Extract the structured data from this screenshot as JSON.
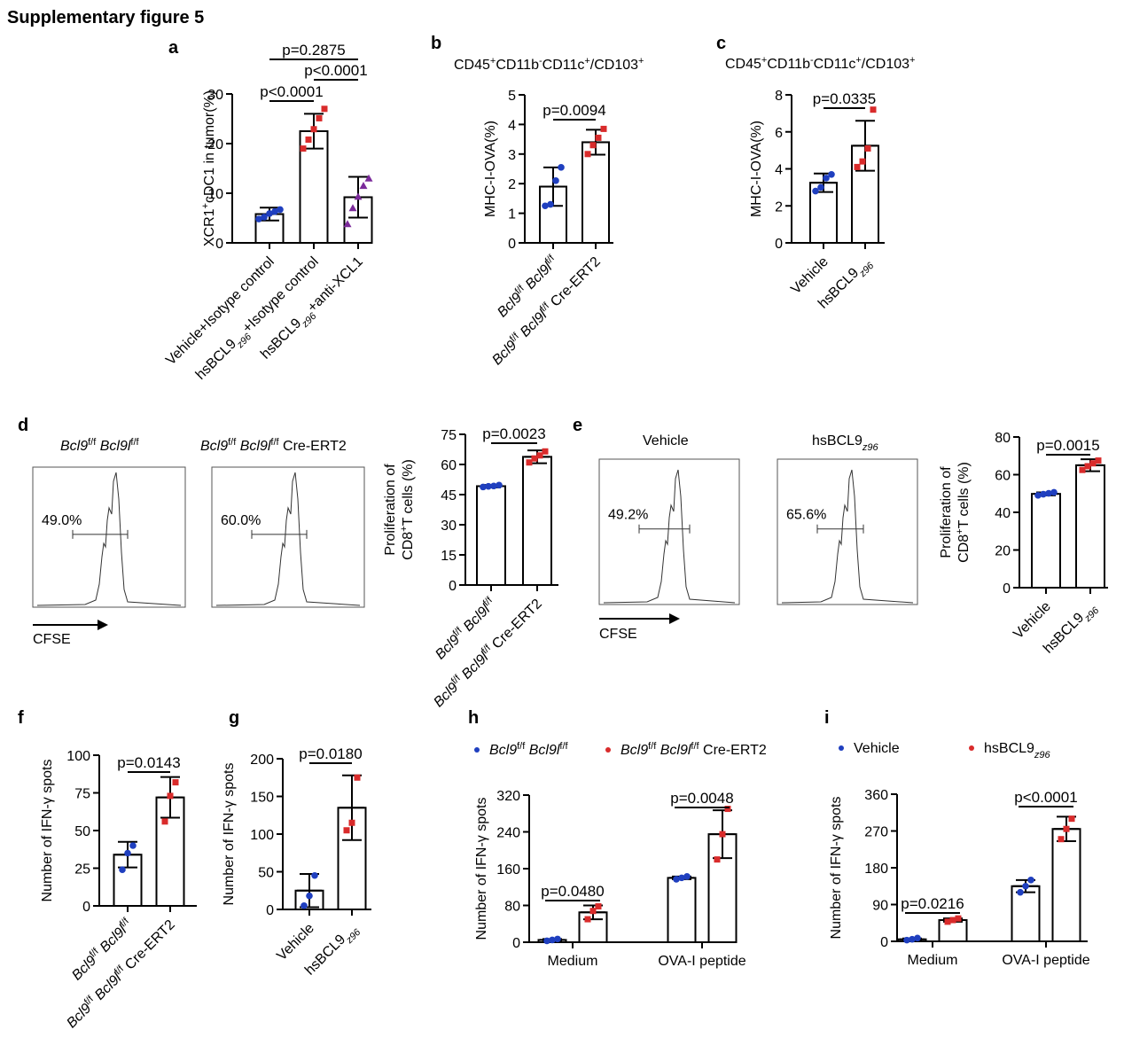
{
  "figure": {
    "title": "Supplementary figure 5"
  },
  "colors": {
    "blue": "#1f3fbf",
    "red": "#d92b2b",
    "purple": "#7b2a9a",
    "axis": "#000000"
  },
  "chart_data": [
    {
      "panel": "a",
      "type": "bar",
      "title": "",
      "ylabel": "XCR1⁺cDC1 in tumor(%)",
      "ylim": [
        0,
        30
      ],
      "yticks": [
        0,
        10,
        20,
        30
      ],
      "categories": [
        "Vehicle+Isotype control",
        "hsBCL9z96+Isotype control",
        "hsBCL9z96+anti-XCL1"
      ],
      "values": [
        5.8,
        22.5,
        9.2
      ],
      "errors": [
        1.3,
        3.5,
        4.1
      ],
      "points": [
        [
          4.8,
          5.2,
          5.9,
          6.3,
          6.7
        ],
        [
          19.0,
          20.8,
          22.9,
          25.1,
          27.0
        ],
        [
          3.8,
          7.0,
          9.3,
          11.5,
          13.0
        ]
      ],
      "point_colors": [
        "blue",
        "red",
        "purple"
      ],
      "comparisons": [
        {
          "from": 0,
          "to": 1,
          "text": "p<0.0001"
        },
        {
          "from": 1,
          "to": 2,
          "text": "p<0.0001"
        },
        {
          "from": 0,
          "to": 2,
          "text": "p=0.2875"
        }
      ]
    },
    {
      "panel": "b",
      "type": "bar",
      "title": "CD45⁺CD11b⁻CD11c⁺/CD103⁺",
      "ylabel": "MHC-I-OVA(%)",
      "ylim": [
        0,
        5
      ],
      "yticks": [
        0,
        1,
        2,
        3,
        4,
        5
      ],
      "categories": [
        "Bcl9f/f Bcl9lf/f",
        "Bcl9f/f Bcl9lf/f Cre-ERT2"
      ],
      "values": [
        1.9,
        3.4
      ],
      "errors": [
        0.65,
        0.42
      ],
      "points": [
        [
          1.25,
          1.3,
          2.1,
          2.55
        ],
        [
          3.0,
          3.3,
          3.55,
          3.85
        ]
      ],
      "point_colors": [
        "blue",
        "red"
      ],
      "comparisons": [
        {
          "from": 0,
          "to": 1,
          "text": "p=0.0094"
        }
      ]
    },
    {
      "panel": "c",
      "type": "bar",
      "title": "CD45⁺CD11b⁻CD11c⁺/CD103⁺",
      "ylabel": "MHC-I-OVA(%)",
      "ylim": [
        0,
        8
      ],
      "yticks": [
        0,
        2,
        4,
        6,
        8
      ],
      "categories": [
        "Vehicle",
        "hsBCL9z96"
      ],
      "values": [
        3.25,
        5.25
      ],
      "errors": [
        0.5,
        1.35
      ],
      "points": [
        [
          2.8,
          3.0,
          3.5,
          3.7
        ],
        [
          4.1,
          4.4,
          5.1,
          7.2
        ]
      ],
      "point_colors": [
        "blue",
        "red"
      ],
      "comparisons": [
        {
          "from": 0,
          "to": 1,
          "text": "p=0.0335"
        }
      ]
    },
    {
      "panel": "d",
      "type": "bar",
      "ylabel": "Proliferation of CD8⁺T cells (%)",
      "ylim": [
        0,
        75
      ],
      "yticks": [
        0,
        15,
        30,
        45,
        60,
        75
      ],
      "categories": [
        "Bcl9f/f Bcl9lf/f",
        "Bcl9f/f Bcl9lf/f Cre-ERT2"
      ],
      "values": [
        49.2,
        63.8
      ],
      "errors": [
        0.6,
        3.2
      ],
      "points": [
        [
          48.8,
          49.1,
          49.3,
          49.7
        ],
        [
          61.0,
          63.0,
          64.5,
          66.5
        ]
      ],
      "point_colors": [
        "blue",
        "red"
      ],
      "comparisons": [
        {
          "from": 0,
          "to": 1,
          "text": "p=0.0023"
        }
      ]
    },
    {
      "panel": "e",
      "type": "bar",
      "ylabel": "Proliferation of CD8⁺T cells (%)",
      "ylim": [
        0,
        80
      ],
      "yticks": [
        0,
        20,
        40,
        60,
        80
      ],
      "categories": [
        "Vehicle",
        "hsBCL9z96"
      ],
      "values": [
        49.8,
        65.0
      ],
      "errors": [
        0.8,
        3.2
      ],
      "points": [
        [
          49.0,
          49.6,
          50.1,
          50.6
        ],
        [
          62.5,
          64.5,
          66.0,
          67.5
        ]
      ],
      "point_colors": [
        "blue",
        "red"
      ],
      "comparisons": [
        {
          "from": 0,
          "to": 1,
          "text": "p=0.0015"
        }
      ]
    },
    {
      "panel": "f",
      "type": "bar",
      "ylabel": "Number of IFN-γ spots",
      "ylim": [
        0,
        100
      ],
      "yticks": [
        0,
        25,
        50,
        75,
        100
      ],
      "categories": [
        "Bcl9f/f Bcl9lf/f",
        "Bcl9f/f Bcl9lf/f Cre-ERT2"
      ],
      "values": [
        34,
        72
      ],
      "errors": [
        8.5,
        13.5
      ],
      "points": [
        [
          24,
          35,
          40
        ],
        [
          56,
          73,
          82
        ]
      ],
      "point_colors": [
        "blue",
        "red"
      ],
      "comparisons": [
        {
          "from": 0,
          "to": 1,
          "text": "p=0.0143"
        }
      ]
    },
    {
      "panel": "g",
      "type": "bar",
      "ylabel": "Number of IFN-γ spots",
      "ylim": [
        0,
        200
      ],
      "yticks": [
        0,
        50,
        100,
        150,
        200
      ],
      "categories": [
        "Vehicle",
        "hsBCL9z96"
      ],
      "values": [
        25,
        135
      ],
      "errors": [
        22,
        43
      ],
      "points": [
        [
          5,
          18,
          45
        ],
        [
          105,
          115,
          175
        ]
      ],
      "point_colors": [
        "blue",
        "red"
      ],
      "comparisons": [
        {
          "from": 0,
          "to": 1,
          "text": "p=0.0180"
        }
      ]
    },
    {
      "panel": "h",
      "type": "bar",
      "ylabel": "Number of IFN-γ spots",
      "ylim": [
        0,
        320
      ],
      "yticks": [
        0,
        80,
        160,
        240,
        320
      ],
      "groups": [
        "Medium",
        "OVA-I peptide"
      ],
      "series": [
        {
          "name": "Bcl9f/f Bcl9lf/f",
          "color": "blue",
          "values": [
            5,
            140
          ],
          "errors": [
            2,
            3
          ],
          "points": [
            [
              3,
              5,
              7
            ],
            [
              137,
              140,
              143
            ]
          ]
        },
        {
          "name": "Bcl9f/f Bcl9lf/f Cre-ERT2",
          "color": "red",
          "values": [
            65,
            235
          ],
          "errors": [
            15,
            52
          ],
          "points": [
            [
              50,
              68,
              78
            ],
            [
              180,
              235,
              290
            ]
          ]
        }
      ],
      "legend_position": "top",
      "comparisons": [
        {
          "group": 0,
          "text": "p=0.0480"
        },
        {
          "group": 1,
          "text": "p=0.0048"
        }
      ]
    },
    {
      "panel": "i",
      "type": "bar",
      "ylabel": "Number of IFN-γ spots",
      "ylim": [
        0,
        360
      ],
      "yticks": [
        0,
        90,
        180,
        270,
        360
      ],
      "groups": [
        "Medium",
        "OVA-I peptide"
      ],
      "series": [
        {
          "name": "Vehicle",
          "color": "blue",
          "values": [
            5,
            135
          ],
          "errors": [
            2,
            15
          ],
          "points": [
            [
              3,
              5,
              8
            ],
            [
              120,
              135,
              150
            ]
          ]
        },
        {
          "name": "hsBCL9z96",
          "color": "red",
          "values": [
            52,
            275
          ],
          "errors": [
            4,
            30
          ],
          "points": [
            [
              48,
              52,
              56
            ],
            [
              250,
              275,
              300
            ]
          ]
        }
      ],
      "legend_position": "top",
      "comparisons": [
        {
          "group": 0,
          "text": "p=0.0216"
        },
        {
          "group": 1,
          "text": "p<0.0001"
        }
      ]
    }
  ],
  "flow": {
    "d": {
      "left_header": "Bcl9f/f Bcl9lf/f",
      "right_header": "Bcl9f/f Bcl9lf/f Cre-ERT2",
      "left_pct": "49.0%",
      "right_pct": "60.0%",
      "axis": "CFSE"
    },
    "e": {
      "left_header": "Vehicle",
      "right_header": "hsBCL9z96",
      "left_pct": "49.2%",
      "right_pct": "65.6%",
      "axis": "CFSE"
    }
  }
}
